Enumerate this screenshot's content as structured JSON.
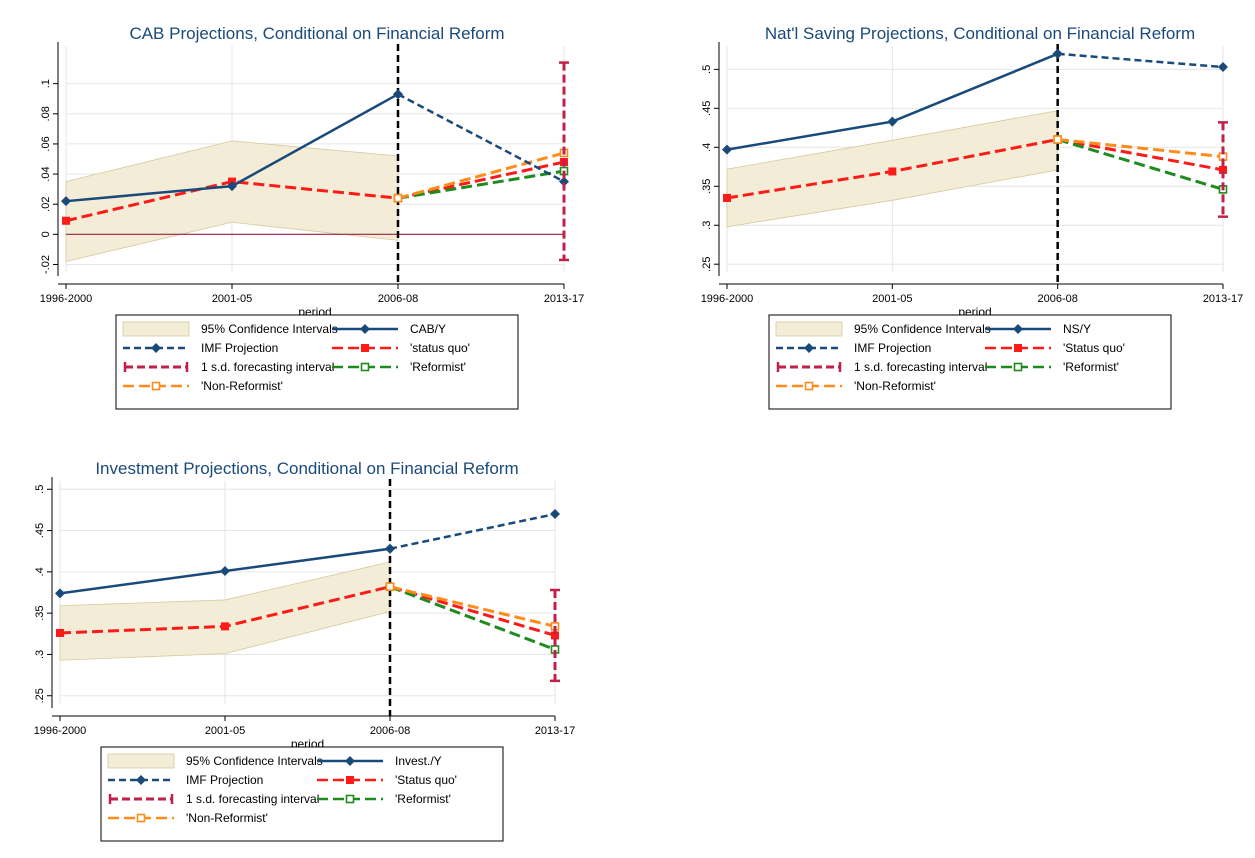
{
  "colors": {
    "title": "#1a4a7a",
    "actual": "#1a4a7a",
    "imf": "#1a4a7a",
    "status_quo": "#ff1a1a",
    "reformist": "#1f8a1f",
    "non_reformist": "#ff8c1a",
    "interval": "#c21f4a",
    "ci_fill": "#f3ecd6",
    "ci_edge": "#d8c89e",
    "grid": "#e6e6e6",
    "vline": "#000000",
    "zeroline": "#a02040"
  },
  "chart_data": [
    {
      "id": "cab",
      "type": "line",
      "title": "CAB Projections, Conditional on Financial Reform",
      "xlabel": "period",
      "categories": [
        "1996-2000",
        "2001-05",
        "2006-08",
        "2013-17"
      ],
      "ylim": [
        -0.025,
        0.125
      ],
      "yticks": [
        -0.02,
        0,
        0.02,
        0.04,
        0.06,
        0.08,
        0.1
      ],
      "ytick_labels": [
        "-.02",
        "0",
        ".02",
        ".04",
        ".06",
        ".08",
        ".1"
      ],
      "zero_line": true,
      "ci_band": {
        "lower": [
          -0.018,
          0.008,
          -0.004
        ],
        "upper": [
          0.035,
          0.062,
          0.052
        ]
      },
      "actual": {
        "name": "CAB/Y",
        "values": [
          0.022,
          0.032,
          0.093
        ]
      },
      "imf": {
        "name": "IMF Projection",
        "values": [
          0.093,
          0.035
        ]
      },
      "status_quo": {
        "name": "'status quo'",
        "values": [
          0.009,
          0.035,
          0.024,
          0.048
        ]
      },
      "reformist": {
        "name": "'Reformist'",
        "values": [
          0.024,
          0.042
        ]
      },
      "non_reformist": {
        "name": "'Non-Reformist'",
        "values": [
          0.024,
          0.054
        ]
      },
      "interval": {
        "name": "1 s.d. forecasting interval",
        "low": -0.017,
        "high": 0.114
      },
      "legend": {
        "ci": "95% Confidence Intervals",
        "actual": "CAB/Y",
        "imf": "IMF Projection",
        "status_quo": "'status quo'",
        "interval": "1 s.d. forecasting interval",
        "reformist": "'Reformist'",
        "non_reformist": "'Non-Reformist'"
      }
    },
    {
      "id": "ns",
      "type": "line",
      "title": "Nat'l Saving Projections, Conditional on Financial Reform",
      "xlabel": "period",
      "categories": [
        "1996-2000",
        "2001-05",
        "2006-08",
        "2013-17"
      ],
      "ylim": [
        0.24,
        0.53
      ],
      "yticks": [
        0.25,
        0.3,
        0.35,
        0.4,
        0.45,
        0.5
      ],
      "ytick_labels": [
        ".25",
        ".3",
        ".35",
        ".4",
        ".45",
        ".5"
      ],
      "zero_line": false,
      "ci_band": {
        "lower": [
          0.298,
          0.332,
          0.371
        ],
        "upper": [
          0.372,
          0.409,
          0.447
        ]
      },
      "actual": {
        "name": "NS/Y",
        "values": [
          0.397,
          0.433,
          0.52
        ]
      },
      "imf": {
        "name": "IMF Projection",
        "values": [
          0.52,
          0.503
        ]
      },
      "status_quo": {
        "name": "'Status quo'",
        "values": [
          0.335,
          0.369,
          0.41,
          0.371
        ]
      },
      "reformist": {
        "name": "'Reformist'",
        "values": [
          0.41,
          0.346
        ]
      },
      "non_reformist": {
        "name": "'Non-Reformist'",
        "values": [
          0.41,
          0.388
        ]
      },
      "interval": {
        "name": "1 s.d. forecasting interval",
        "low": 0.311,
        "high": 0.432
      },
      "legend": {
        "ci": "95% Confidence Intervals",
        "actual": "NS/Y",
        "imf": "IMF Projection",
        "status_quo": "'Status quo'",
        "interval": "1 s.d. forecasting interval",
        "reformist": "'Reformist'",
        "non_reformist": "'Non-Reformist'"
      }
    },
    {
      "id": "inv",
      "type": "line",
      "title": "Investment Projections, Conditional on Financial Reform",
      "xlabel": "period",
      "categories": [
        "1996-2000",
        "2001-05",
        "2006-08",
        "2013-17"
      ],
      "ylim": [
        0.24,
        0.51
      ],
      "yticks": [
        0.25,
        0.3,
        0.35,
        0.4,
        0.45,
        0.5
      ],
      "ytick_labels": [
        ".25",
        ".3",
        ".35",
        ".4",
        ".45",
        ".5"
      ],
      "zero_line": false,
      "ci_band": {
        "lower": [
          0.293,
          0.301,
          0.352
        ],
        "upper": [
          0.359,
          0.366,
          0.412
        ]
      },
      "actual": {
        "name": "Invest./Y",
        "values": [
          0.374,
          0.401,
          0.428
        ]
      },
      "imf": {
        "name": "IMF Projection",
        "values": [
          0.428,
          0.47
        ]
      },
      "status_quo": {
        "name": "'Status quo'",
        "values": [
          0.326,
          0.334,
          0.382,
          0.323
        ]
      },
      "reformist": {
        "name": "'Reformist'",
        "values": [
          0.382,
          0.306
        ]
      },
      "non_reformist": {
        "name": "'Non-Reformist'",
        "values": [
          0.382,
          0.334
        ]
      },
      "interval": {
        "name": "1 s.d. forecasting interval",
        "low": 0.268,
        "high": 0.378
      },
      "legend": {
        "ci": "95% Confidence Intervals",
        "actual": "Invest./Y",
        "imf": "IMF Projection",
        "status_quo": "'Status quo'",
        "interval": "1 s.d. forecasting interval",
        "reformist": "'Reformist'",
        "non_reformist": "'Non-Reformist'"
      }
    }
  ]
}
